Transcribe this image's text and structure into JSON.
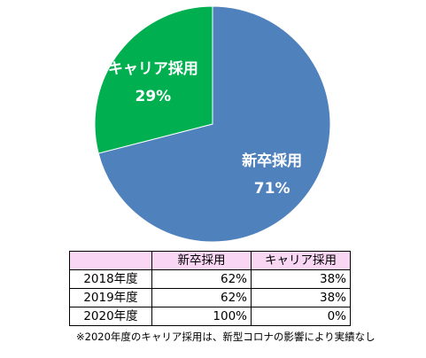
{
  "chart_data": {
    "type": "pie",
    "slices": [
      {
        "label": "新卒採用",
        "value": 71,
        "display": "71%",
        "color": "#4f81bd"
      },
      {
        "label": "キャリア採用",
        "value": 29,
        "display": "29%",
        "color": "#00b050"
      }
    ]
  },
  "table": {
    "headers": [
      "",
      "新卒採用",
      "キャリア採用"
    ],
    "rows": [
      {
        "year": "2018年度",
        "shinsotsu": "62%",
        "career": "38%"
      },
      {
        "year": "2019年度",
        "shinsotsu": "62%",
        "career": "38%"
      },
      {
        "year": "2020年度",
        "shinsotsu": "100%",
        "career": "0%"
      }
    ]
  },
  "footnote": "※2020年度のキャリア採用は、新型コロナの影響により実績なし"
}
